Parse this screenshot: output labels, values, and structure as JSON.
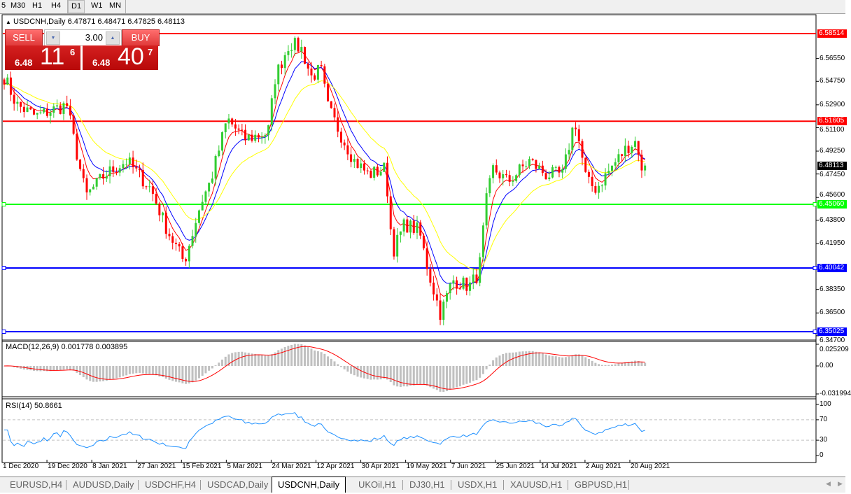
{
  "toolbar": {
    "timeframes": [
      {
        "label": "5"
      },
      {
        "label": "M30"
      },
      {
        "label": "H1"
      },
      {
        "label": "H4"
      },
      {
        "label": "D1",
        "active": true
      },
      {
        "label": "W1"
      },
      {
        "label": "MN"
      }
    ]
  },
  "chart": {
    "header": "USDCNH,Daily  6.47871 6.48471 6.47825 6.48113",
    "trade_panel": {
      "sell_label": "SELL",
      "buy_label": "BUY",
      "lot": "3.00",
      "sell_small": "6.48",
      "sell_big": "11",
      "sell_sup": "6",
      "buy_small": "6.48",
      "buy_big": "40",
      "buy_sup": "7"
    },
    "price_ticks": [
      "6.56550",
      "6.54750",
      "6.52900",
      "6.51100",
      "6.49250",
      "6.47450",
      "6.45600",
      "6.43800",
      "6.41950",
      "6.38350",
      "6.36500",
      "6.34700"
    ],
    "current_price": "6.48113",
    "levels": [
      {
        "price": "6.58514",
        "color": "#ff0000"
      },
      {
        "price": "6.51605",
        "color": "#ff0000"
      },
      {
        "price": "6.45060",
        "color": "#00ff00"
      },
      {
        "price": "6.40042",
        "color": "#0000ff"
      },
      {
        "price": "6.35025",
        "color": "#0000ff"
      }
    ],
    "date_ticks": [
      "1 Dec 2020",
      "19 Dec 2020",
      "8 Jan 2021",
      "27 Jan 2021",
      "15 Feb 2021",
      "5 Mar 2021",
      "24 Mar 2021",
      "12 Apr 2021",
      "30 Apr 2021",
      "19 May 2021",
      "7 Jun 2021",
      "25 Jun 2021",
      "14 Jul 2021",
      "2 Aug 2021",
      "20 Aug 2021"
    ],
    "macd": {
      "label": "MACD(12,26,9) 0.001778 0.003895",
      "ticks": [
        "0.025209",
        "0.00",
        "-0.031994"
      ]
    },
    "rsi": {
      "label": "RSI(14) 50.8661",
      "ticks": [
        "100",
        "70",
        "30",
        "0"
      ]
    },
    "colors": {
      "bull": "#32cd32",
      "bear": "#ff0000",
      "ma_fast": "#ff0000",
      "ma_mid": "#0000ff",
      "ma_slow": "#ffff00",
      "macd_hist": "#c0c0c0",
      "macd_signal": "#ff0000",
      "rsi": "#1e90ff"
    }
  },
  "chart_data": {
    "type": "candlestick",
    "symbol": "USDCNH",
    "timeframe": "Daily",
    "ylim": [
      6.347,
      6.59
    ],
    "close_approx": [
      [
        "2020-12-02",
        6.551
      ],
      [
        "2020-12-07",
        6.529
      ],
      [
        "2020-12-15",
        6.52
      ],
      [
        "2020-12-28",
        6.529
      ],
      [
        "2020-12-31",
        6.501
      ],
      [
        "2021-01-05",
        6.457
      ],
      [
        "2021-01-13",
        6.474
      ],
      [
        "2021-01-22",
        6.485
      ],
      [
        "2021-02-01",
        6.463
      ],
      [
        "2021-02-08",
        6.43
      ],
      [
        "2021-02-15",
        6.405
      ],
      [
        "2021-02-22",
        6.452
      ],
      [
        "2021-02-26",
        6.469
      ],
      [
        "2021-03-05",
        6.518
      ],
      [
        "2021-03-12",
        6.502
      ],
      [
        "2021-03-22",
        6.507
      ],
      [
        "2021-03-25",
        6.551
      ],
      [
        "2021-03-31",
        6.578
      ],
      [
        "2021-04-05",
        6.573
      ],
      [
        "2021-04-09",
        6.551
      ],
      [
        "2021-04-13",
        6.557
      ],
      [
        "2021-04-16",
        6.527
      ],
      [
        "2021-04-21",
        6.507
      ],
      [
        "2021-04-27",
        6.485
      ],
      [
        "2021-05-03",
        6.474
      ],
      [
        "2021-05-10",
        6.479
      ],
      [
        "2021-05-13",
        6.413
      ],
      [
        "2021-05-18",
        6.435
      ],
      [
        "2021-05-24",
        6.43
      ],
      [
        "2021-05-28",
        6.397
      ],
      [
        "2021-06-02",
        6.364
      ],
      [
        "2021-06-07",
        6.391
      ],
      [
        "2021-06-14",
        6.386
      ],
      [
        "2021-06-18",
        6.397
      ],
      [
        "2021-06-21",
        6.452
      ],
      [
        "2021-06-24",
        6.479
      ],
      [
        "2021-06-30",
        6.468
      ],
      [
        "2021-07-09",
        6.485
      ],
      [
        "2021-07-16",
        6.474
      ],
      [
        "2021-07-23",
        6.474
      ],
      [
        "2021-07-28",
        6.518
      ],
      [
        "2021-08-02",
        6.468
      ],
      [
        "2021-08-06",
        6.463
      ],
      [
        "2021-08-12",
        6.479
      ],
      [
        "2021-08-19",
        6.496
      ],
      [
        "2021-08-23",
        6.501
      ],
      [
        "2021-08-25",
        6.474
      ],
      [
        "2021-08-27",
        6.48113
      ]
    ]
  },
  "tabs": [
    {
      "label": "EURUSD,H4"
    },
    {
      "label": "AUDUSD,Daily"
    },
    {
      "label": "USDCHF,H4"
    },
    {
      "label": "USDCAD,Daily"
    },
    {
      "label": "USDCNH,Daily",
      "active": true
    },
    {
      "label": "UKOil,H1"
    },
    {
      "label": "DJ30,H1"
    },
    {
      "label": "USDX,H1"
    },
    {
      "label": "XAUUSD,H1"
    },
    {
      "label": "GBPUSD,H1"
    }
  ]
}
